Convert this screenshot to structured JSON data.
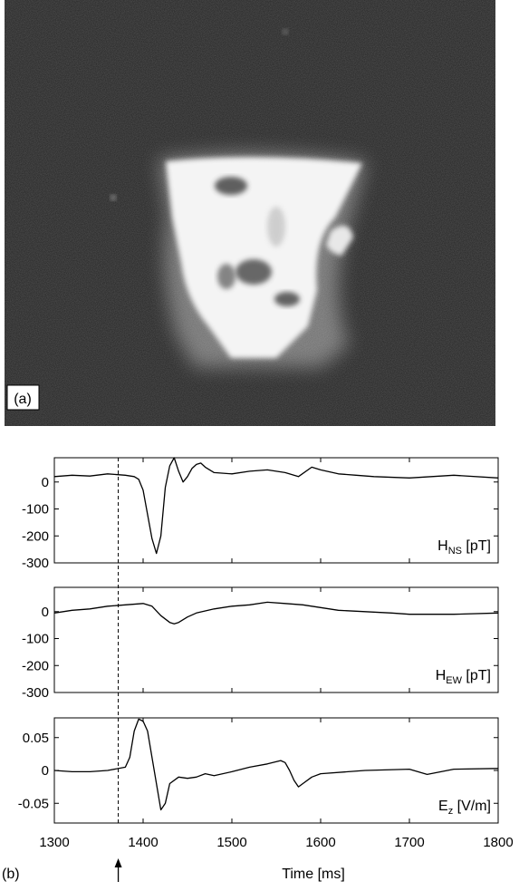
{
  "panel_a": {
    "label": "(a)"
  },
  "panel_b": {
    "label": "(b)"
  },
  "chart_data": {
    "type": "line",
    "xlabel": "Time [ms]",
    "xlim": [
      1300,
      1800
    ],
    "xticks": [
      "1300",
      "1400",
      "1500",
      "1600",
      "1700",
      "1800"
    ],
    "marker_time": 1372,
    "subplots": [
      {
        "ylabel": "H_NS [pT]",
        "ylabel_main": "H",
        "ylabel_sub": "NS",
        "ylabel_unit": " [pT]",
        "ylim": [
          -300,
          90
        ],
        "yticks": [
          "0",
          "-100",
          "-200",
          "-300"
        ],
        "series": {
          "x": [
            1300,
            1320,
            1340,
            1360,
            1380,
            1390,
            1395,
            1400,
            1405,
            1410,
            1415,
            1420,
            1425,
            1430,
            1435,
            1440,
            1445,
            1450,
            1455,
            1460,
            1465,
            1470,
            1480,
            1500,
            1520,
            1540,
            1560,
            1575,
            1590,
            1600,
            1620,
            1640,
            1660,
            1700,
            1750,
            1800
          ],
          "y": [
            20,
            25,
            22,
            30,
            25,
            20,
            10,
            -30,
            -120,
            -210,
            -265,
            -200,
            -20,
            60,
            90,
            40,
            0,
            20,
            50,
            65,
            70,
            55,
            35,
            30,
            40,
            45,
            35,
            20,
            55,
            45,
            30,
            25,
            20,
            15,
            25,
            15
          ]
        }
      },
      {
        "ylabel": "H_EW [pT]",
        "ylabel_main": "H",
        "ylabel_sub": "EW",
        "ylabel_unit": " [pT]",
        "ylim": [
          -300,
          90
        ],
        "yticks": [
          "0",
          "-100",
          "-200",
          "-300"
        ],
        "series": {
          "x": [
            1300,
            1320,
            1340,
            1360,
            1380,
            1400,
            1410,
            1420,
            1430,
            1435,
            1440,
            1450,
            1460,
            1480,
            1500,
            1520,
            1540,
            1560,
            1580,
            1600,
            1620,
            1650,
            1680,
            1700,
            1750,
            1800
          ],
          "y": [
            -5,
            5,
            10,
            20,
            25,
            30,
            20,
            -15,
            -40,
            -45,
            -40,
            -20,
            -5,
            10,
            20,
            25,
            35,
            30,
            25,
            15,
            5,
            0,
            -5,
            -10,
            -10,
            -5
          ]
        }
      },
      {
        "ylabel": "E_z [V/m]",
        "ylabel_main": "E",
        "ylabel_sub": "z",
        "ylabel_unit": " [V/m]",
        "ylim": [
          -0.08,
          0.08
        ],
        "yticks": [
          "0.05",
          "0",
          "-0.05"
        ],
        "series": {
          "x": [
            1300,
            1320,
            1340,
            1360,
            1380,
            1385,
            1390,
            1395,
            1400,
            1405,
            1410,
            1415,
            1420,
            1425,
            1430,
            1440,
            1450,
            1460,
            1470,
            1480,
            1500,
            1520,
            1540,
            1555,
            1560,
            1565,
            1570,
            1575,
            1580,
            1590,
            1600,
            1650,
            1700,
            1720,
            1750,
            1800
          ],
          "y": [
            0,
            -0.002,
            -0.002,
            0,
            0.005,
            0.02,
            0.06,
            0.078,
            0.075,
            0.06,
            0.02,
            -0.02,
            -0.06,
            -0.05,
            -0.02,
            -0.01,
            -0.012,
            -0.01,
            -0.005,
            -0.008,
            -0.002,
            0.005,
            0.01,
            0.015,
            0.012,
            0,
            -0.015,
            -0.025,
            -0.02,
            -0.01,
            -0.005,
            0,
            0.002,
            -0.006,
            0.002,
            0.003
          ]
        }
      }
    ]
  }
}
